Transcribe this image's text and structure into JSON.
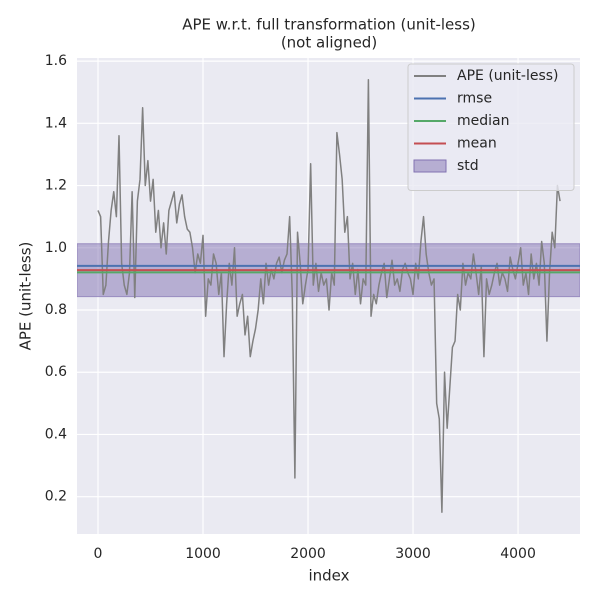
{
  "chart_data": {
    "type": "line",
    "title": "APE w.r.t. full transformation (unit-less)",
    "subtitle": "(not aligned)",
    "x_label": "index",
    "y_label": "APE (unit-less)",
    "x": [
      0,
      25,
      50,
      75,
      100,
      125,
      150,
      175,
      200,
      225,
      250,
      275,
      300,
      325,
      350,
      375,
      400,
      425,
      450,
      475,
      500,
      525,
      550,
      575,
      600,
      625,
      650,
      675,
      700,
      725,
      750,
      775,
      800,
      825,
      850,
      875,
      900,
      925,
      950,
      975,
      1000,
      1025,
      1050,
      1075,
      1100,
      1125,
      1150,
      1175,
      1200,
      1225,
      1250,
      1275,
      1300,
      1325,
      1350,
      1375,
      1400,
      1425,
      1450,
      1475,
      1500,
      1525,
      1550,
      1575,
      1600,
      1625,
      1650,
      1675,
      1700,
      1725,
      1750,
      1775,
      1800,
      1825,
      1850,
      1875,
      1900,
      1925,
      1950,
      1975,
      2000,
      2025,
      2050,
      2075,
      2100,
      2125,
      2150,
      2175,
      2200,
      2225,
      2250,
      2275,
      2300,
      2325,
      2350,
      2375,
      2400,
      2425,
      2450,
      2475,
      2500,
      2525,
      2550,
      2575,
      2600,
      2625,
      2650,
      2675,
      2700,
      2725,
      2750,
      2775,
      2800,
      2825,
      2850,
      2875,
      2900,
      2925,
      2950,
      2975,
      3000,
      3025,
      3050,
      3075,
      3100,
      3125,
      3150,
      3175,
      3200,
      3225,
      3250,
      3275,
      3300,
      3325,
      3350,
      3375,
      3400,
      3425,
      3450,
      3475,
      3500,
      3525,
      3550,
      3575,
      3600,
      3625,
      3650,
      3675,
      3700,
      3725,
      3750,
      3775,
      3800,
      3825,
      3850,
      3875,
      3900,
      3925,
      3950,
      3975,
      4000,
      4025,
      4050,
      4075,
      4100,
      4125,
      4150,
      4175,
      4200,
      4225,
      4250,
      4275,
      4300,
      4325,
      4350,
      4375,
      4400
    ],
    "series": [
      {
        "name": "APE (unit-less)",
        "color": "#808080",
        "values": [
          1.12,
          1.1,
          0.85,
          0.88,
          1.02,
          1.12,
          1.18,
          1.1,
          1.36,
          0.95,
          0.88,
          0.85,
          0.92,
          1.18,
          0.84,
          1.15,
          1.22,
          1.45,
          1.2,
          1.28,
          1.15,
          1.22,
          1.05,
          1.12,
          1.0,
          1.08,
          0.98,
          1.12,
          1.15,
          1.18,
          1.08,
          1.14,
          1.17,
          1.1,
          1.06,
          1.05,
          1.0,
          0.92,
          0.98,
          0.95,
          1.04,
          0.78,
          0.9,
          0.88,
          0.98,
          0.95,
          0.85,
          0.92,
          0.65,
          0.82,
          0.95,
          0.88,
          1.0,
          0.78,
          0.82,
          0.85,
          0.72,
          0.78,
          0.65,
          0.7,
          0.74,
          0.8,
          0.9,
          0.82,
          0.95,
          0.88,
          0.93,
          0.9,
          0.95,
          0.97,
          0.92,
          0.96,
          0.98,
          1.1,
          0.85,
          0.26,
          1.05,
          0.95,
          0.82,
          0.88,
          0.93,
          1.27,
          0.88,
          0.95,
          0.86,
          0.92,
          0.88,
          0.9,
          0.8,
          0.92,
          0.88,
          1.37,
          1.3,
          1.22,
          1.05,
          1.1,
          0.9,
          0.95,
          0.85,
          0.93,
          0.82,
          0.9,
          0.88,
          1.54,
          0.78,
          0.85,
          0.82,
          0.88,
          0.92,
          0.95,
          0.84,
          0.9,
          0.96,
          0.88,
          0.9,
          0.86,
          0.93,
          0.95,
          0.92,
          0.9,
          0.85,
          0.95,
          0.9,
          1.02,
          1.1,
          0.98,
          0.92,
          0.88,
          0.9,
          0.5,
          0.45,
          0.15,
          0.6,
          0.42,
          0.55,
          0.68,
          0.7,
          0.85,
          0.8,
          0.95,
          0.88,
          0.92,
          0.9,
          0.98,
          0.92,
          0.85,
          0.94,
          0.65,
          0.9,
          0.85,
          0.88,
          0.92,
          0.95,
          0.88,
          0.92,
          0.9,
          0.86,
          0.97,
          0.93,
          0.9,
          0.95,
          1.0,
          0.88,
          0.92,
          0.85,
          0.98,
          0.9,
          0.95,
          0.88,
          1.02,
          0.95,
          0.7,
          0.92,
          1.05,
          1.0,
          1.2,
          1.15
        ]
      }
    ],
    "stats": [
      {
        "name": "rmse",
        "color": "#4c72b0",
        "value": 0.942
      },
      {
        "name": "median",
        "color": "#55a868",
        "value": 0.921
      },
      {
        "name": "mean",
        "color": "#c44e52",
        "value": 0.928
      }
    ],
    "std": {
      "name": "std",
      "color": "#8172b2",
      "lower": 0.843,
      "upper": 1.013
    },
    "xlim": [
      -200,
      4590
    ],
    "ylim": [
      0.08,
      1.61
    ],
    "xticks": [
      0,
      1000,
      2000,
      3000,
      4000
    ],
    "yticks": [
      0.2,
      0.4,
      0.6,
      0.8,
      {
        "value": 1,
        "label": "1.0"
      },
      1.2,
      1.4,
      1.6
    ],
    "grid": true,
    "legend": "upper right"
  }
}
